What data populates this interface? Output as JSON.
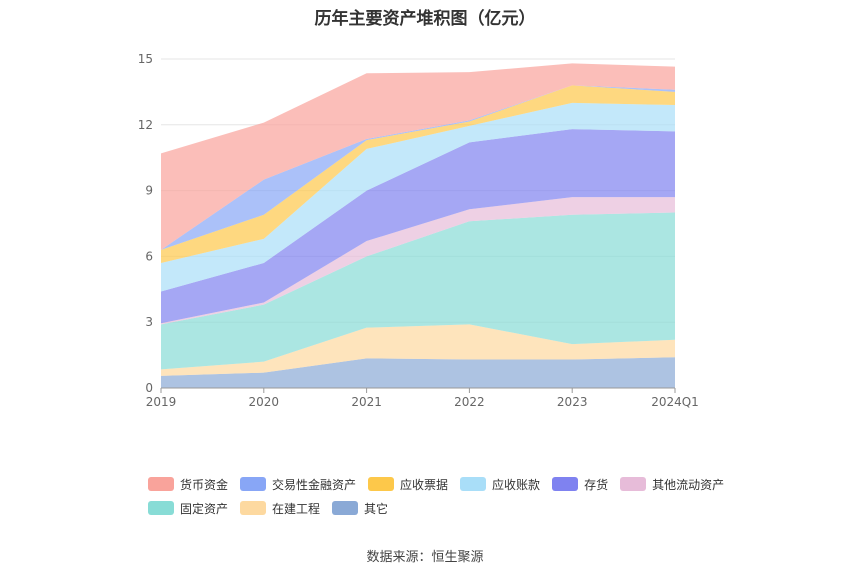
{
  "chart_data": {
    "type": "area",
    "title": "历年主要资产堆积图（亿元）",
    "categories": [
      "2019",
      "2020",
      "2021",
      "2022",
      "2023",
      "2024Q1"
    ],
    "ylim": [
      0,
      15
    ],
    "yticks": [
      "0",
      "3",
      "6",
      "9",
      "12",
      "15"
    ],
    "stacked": true,
    "grid": true,
    "legend_position": "bottom",
    "series": [
      {
        "name": "其它",
        "color": "#8aa9d6",
        "values": [
          0.55,
          0.7,
          1.35,
          1.3,
          1.3,
          1.4
        ]
      },
      {
        "name": "在建工程",
        "color": "#fdd9a0",
        "values": [
          0.3,
          0.5,
          1.4,
          1.6,
          0.7,
          0.8
        ]
      },
      {
        "name": "固定资产",
        "color": "#88dcd6",
        "values": [
          2.05,
          2.6,
          3.25,
          4.7,
          5.9,
          5.8
        ]
      },
      {
        "name": "其他流动资产",
        "color": "#e7bcd9",
        "values": [
          0.05,
          0.1,
          0.7,
          0.55,
          0.8,
          0.7
        ]
      },
      {
        "name": "存货",
        "color": "#7f82f0",
        "values": [
          1.45,
          1.8,
          2.3,
          3.05,
          3.1,
          3.0
        ]
      },
      {
        "name": "应收账款",
        "color": "#a9def8",
        "values": [
          1.3,
          1.1,
          1.9,
          0.75,
          1.2,
          1.2
        ]
      },
      {
        "name": "应收票据",
        "color": "#fdc84a",
        "values": [
          0.6,
          1.1,
          0.4,
          0.2,
          0.8,
          0.6
        ]
      },
      {
        "name": "交易性金融资产",
        "color": "#88a6f6",
        "values": [
          0.0,
          1.6,
          0.05,
          0.05,
          0.0,
          0.1
        ]
      },
      {
        "name": "货币资金",
        "color": "#f9a39b",
        "values": [
          4.4,
          2.6,
          3.0,
          2.2,
          1.0,
          1.05
        ]
      }
    ],
    "source": "数据来源：恒生聚源"
  },
  "legend": {
    "row1": [
      "货币资金",
      "交易性金融资产",
      "应收票据",
      "应收账款",
      "存货",
      "其他流动资产"
    ],
    "row2": [
      "固定资产",
      "在建工程",
      "其它"
    ],
    "colors": {
      "货币资金": "#f9a39b",
      "交易性金融资产": "#88a6f6",
      "应收票据": "#fdc84a",
      "应收账款": "#a9def8",
      "存货": "#7f82f0",
      "其他流动资产": "#e7bcd9",
      "固定资产": "#88dcd6",
      "在建工程": "#fdd9a0",
      "其它": "#8aa9d6"
    }
  }
}
